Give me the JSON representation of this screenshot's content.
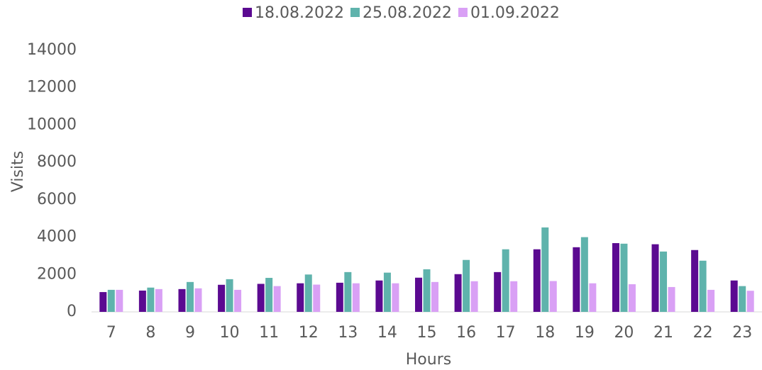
{
  "chart_data": {
    "type": "bar",
    "x_label": "Hours",
    "y_label": "Visits",
    "categories": [
      "7",
      "8",
      "9",
      "10",
      "11",
      "12",
      "13",
      "14",
      "15",
      "16",
      "17",
      "18",
      "19",
      "20",
      "21",
      "22",
      "23"
    ],
    "series": [
      {
        "name": "18.08.2022",
        "color": "#5b0a91",
        "values": [
          1060,
          1140,
          1220,
          1450,
          1500,
          1530,
          1560,
          1680,
          1830,
          2020,
          2130,
          3350,
          3460,
          3680,
          3620,
          3310,
          1680
        ]
      },
      {
        "name": "25.08.2022",
        "color": "#5fb3ac",
        "values": [
          1180,
          1300,
          1600,
          1750,
          1820,
          2000,
          2130,
          2100,
          2280,
          2780,
          3350,
          4520,
          4000,
          3650,
          3230,
          2740,
          1380
        ]
      },
      {
        "name": "01.09.2022",
        "color": "#d9a0f5",
        "values": [
          1180,
          1220,
          1260,
          1180,
          1380,
          1460,
          1530,
          1530,
          1600,
          1640,
          1640,
          1650,
          1530,
          1480,
          1330,
          1180,
          1130
        ]
      }
    ],
    "ylim": [
      0,
      14000
    ],
    "yticks": [
      0,
      2000,
      4000,
      6000,
      8000,
      10000,
      12000,
      14000
    ],
    "grid": false,
    "legend": "top"
  }
}
